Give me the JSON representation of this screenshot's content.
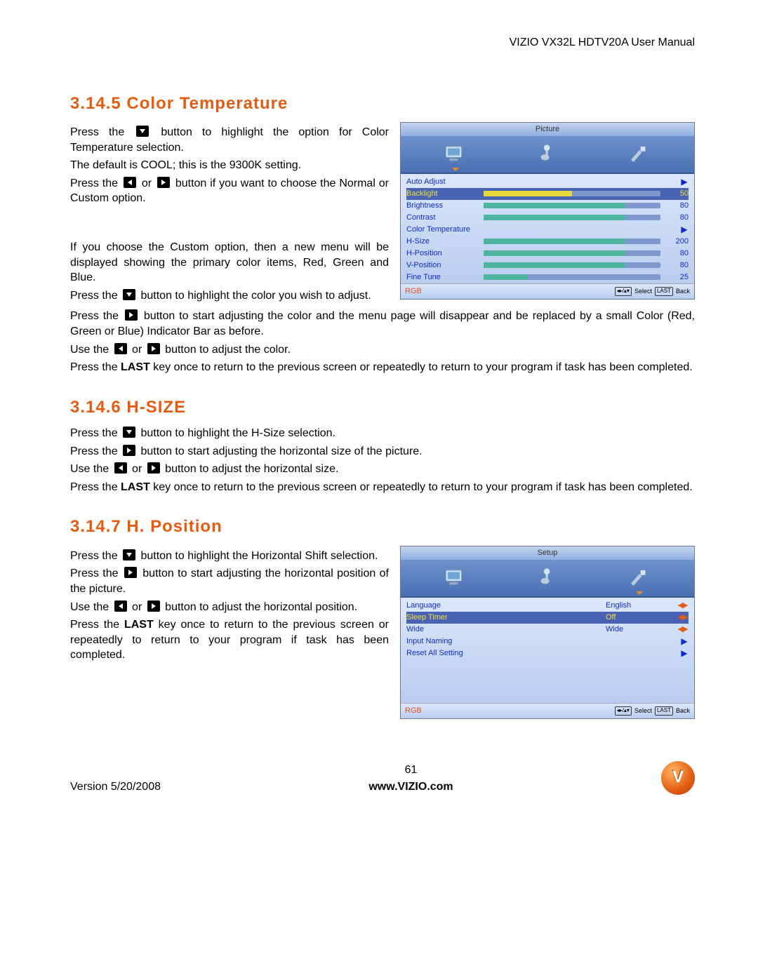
{
  "doc": {
    "header": "VIZIO VX32L HDTV20A User Manual",
    "version": "Version 5/20/2008",
    "page": "61",
    "site": "www.VIZIO.com"
  },
  "sections": {
    "s1": {
      "num": "3.14.5",
      "title": "Color Temperature"
    },
    "s2": {
      "num": "3.14.6",
      "title": "H-SIZE"
    },
    "s3": {
      "num": "3.14.7",
      "title": "H. Position"
    }
  },
  "body": {
    "s1p1a": "Press the ",
    "s1p1b": " button to highlight the option for Color Temperature selection.",
    "s1p2": "The default is COOL; this is the 9300K setting.",
    "s1p3a": "Press the ",
    "s1p3b": " or ",
    "s1p3c": " button if you want to choose the Normal or Custom option.",
    "s1p4": "If you choose the Custom option, then a new menu will be displayed showing the primary color items, Red, Green and Blue.",
    "s1p5a": "Press the ",
    "s1p5b": " button to highlight the color you wish to adjust.",
    "s1p6a": "Press the ",
    "s1p6b": " button to start adjusting the color and the menu page will disappear and be replaced by a small Color (Red, Green or Blue) Indicator Bar as before.",
    "s1p7a": "Use the ",
    "s1p7b": " or ",
    "s1p7c": " button to adjust the color.",
    "s1p8a": "Press the ",
    "s1p8b": "LAST",
    "s1p8c": " key once to return to the previous screen or repeatedly to return to your program if task has been completed.",
    "s2p1a": "Press the ",
    "s2p1b": " button to highlight the H-Size selection.",
    "s2p2a": "Press the ",
    "s2p2b": " button to start adjusting the horizontal size of the picture.",
    "s2p3a": "Use the ",
    "s2p3b": " or ",
    "s2p3c": " button to adjust the horizontal size.",
    "s2p4a": "Press the ",
    "s2p4b": "LAST",
    "s2p4c": " key once to return to the previous screen or repeatedly to return to your program if task has been completed.",
    "s3p1a": "Press the ",
    "s3p1b": " button to highlight the Horizontal Shift selection.",
    "s3p2a": "Press the ",
    "s3p2b": " button to start adjusting the horizontal position of the picture.",
    "s3p3a": "Use the ",
    "s3p3b": " or ",
    "s3p3c": " button to adjust the horizontal position.",
    "s3p4a": "Press the ",
    "s3p4b": "LAST",
    "s3p4c": " key once to return to the previous screen or repeatedly to return to your program if task has been completed."
  },
  "osd1": {
    "title": "Picture",
    "footer_rgb": "RGB",
    "footer_select": "Select",
    "footer_back": "Back",
    "rows": [
      {
        "label": "Auto Adjust",
        "type": "arrow"
      },
      {
        "label": "Backlight",
        "type": "bar",
        "value": 50,
        "max": 100,
        "highlight": true
      },
      {
        "label": "Brightness",
        "type": "bar",
        "value": 80,
        "max": 100
      },
      {
        "label": "Contrast",
        "type": "bar",
        "value": 80,
        "max": 100
      },
      {
        "label": "Color Temperature",
        "type": "arrow"
      },
      {
        "label": "H-Size",
        "type": "bar",
        "value": 200,
        "max": 250,
        "pct": 80
      },
      {
        "label": "H-Position",
        "type": "bar",
        "value": 80,
        "max": 100
      },
      {
        "label": "V-Position",
        "type": "bar",
        "value": 80,
        "max": 100
      },
      {
        "label": "Fine Tune",
        "type": "bar",
        "value": 25,
        "max": 100
      }
    ],
    "colors": {
      "label": "#1029c9",
      "highlight_bg": "#4962b3",
      "highlight_text": "#f0e040",
      "bar_fill": "#4eb4a0",
      "bar_fill_hl": "#e8d83e"
    }
  },
  "osd2": {
    "title": "Setup",
    "footer_rgb": "RGB",
    "footer_select": "Select",
    "footer_back": "Back",
    "rows": [
      {
        "label": "Language",
        "type": "text",
        "value": "English",
        "arrows": "lr"
      },
      {
        "label": "Sleep Timer",
        "type": "text",
        "value": "Off",
        "arrows": "lr",
        "highlight": true
      },
      {
        "label": "Wide",
        "type": "text",
        "value": "Wide",
        "arrows": "lr"
      },
      {
        "label": "Input Naming",
        "type": "arrow"
      },
      {
        "label": "Reset All Setting",
        "type": "arrow"
      }
    ]
  }
}
